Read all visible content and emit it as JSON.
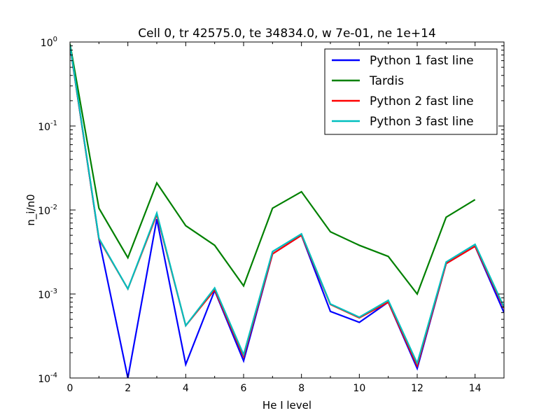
{
  "chart_data": {
    "type": "line",
    "title": "Cell 0, tr 42575.0, te 34834.0, w 7e-01, ne 1e+14",
    "xlabel": "He I level",
    "ylabel": "n_i/n0",
    "xlim": [
      0,
      15
    ],
    "ylim": [
      0.0001,
      1
    ],
    "yscale": "log",
    "grid": false,
    "legend_position": "top-right",
    "x_ticks": [
      "0",
      "2",
      "4",
      "6",
      "8",
      "10",
      "12",
      "14"
    ],
    "y_ticks": [
      {
        "base": "10",
        "exp": "-4"
      },
      {
        "base": "10",
        "exp": "-3"
      },
      {
        "base": "10",
        "exp": "-2"
      },
      {
        "base": "10",
        "exp": "-1"
      },
      {
        "base": "10",
        "exp": "0"
      }
    ],
    "series": [
      {
        "name": "Python 1 fast line",
        "color": "#0000ff",
        "x": [
          0,
          1,
          2,
          3,
          4,
          5,
          6,
          7,
          8,
          9,
          10,
          11,
          12,
          13,
          14,
          15
        ],
        "values": [
          0.9,
          0.0045,
          0.0001,
          0.0078,
          0.000145,
          0.0011,
          0.00016,
          0.003,
          0.005,
          0.00062,
          0.00046,
          0.0008,
          0.00013,
          0.0023,
          0.0037,
          0.0006
        ]
      },
      {
        "name": "Tardis",
        "color": "#008000",
        "x": [
          0,
          1,
          2,
          3,
          4,
          5,
          6,
          7,
          8,
          9,
          10,
          11,
          12,
          13,
          14
        ],
        "values": [
          0.95,
          0.0105,
          0.0027,
          0.021,
          0.0065,
          0.0038,
          0.00125,
          0.0105,
          0.0165,
          0.0055,
          0.0038,
          0.0028,
          0.001,
          0.0082,
          0.0133
        ]
      },
      {
        "name": "Python 2 fast line",
        "color": "#ff0000",
        "x": [
          0,
          1,
          2,
          3,
          4,
          5,
          6,
          7,
          8,
          9,
          10,
          11,
          12,
          13,
          14,
          15
        ],
        "values": [
          0.9,
          0.0045,
          0.00115,
          0.0088,
          0.00042,
          0.00112,
          0.00018,
          0.003,
          0.005,
          0.00075,
          0.00052,
          0.0008,
          0.00014,
          0.0023,
          0.0037,
          0.00068
        ]
      },
      {
        "name": "Python 3 fast line",
        "color": "#00bfbf",
        "x": [
          0,
          1,
          2,
          3,
          4,
          5,
          6,
          7,
          8,
          9,
          10,
          11,
          12,
          13,
          14,
          15
        ],
        "values": [
          0.92,
          0.0046,
          0.00115,
          0.0092,
          0.00042,
          0.00118,
          0.00019,
          0.0032,
          0.0052,
          0.00076,
          0.00053,
          0.00084,
          0.00015,
          0.0024,
          0.0039,
          0.0007
        ]
      }
    ]
  }
}
